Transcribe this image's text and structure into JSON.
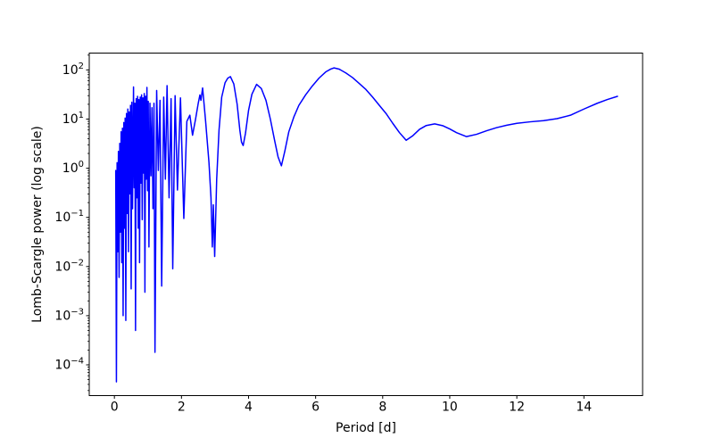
{
  "figure": {
    "background": "#ffffff",
    "axes_edge_color": "#000000",
    "tick_color": "#000000"
  },
  "chart_data": {
    "type": "line",
    "title": "",
    "xlabel": "Period [d]",
    "ylabel": "Lomb-Scargle power (log scale)",
    "x_scale": "linear",
    "y_scale": "log",
    "grid": false,
    "legend_position": "none",
    "xlim": [
      -0.75,
      15.75
    ],
    "ylim_log10": [
      -4.626,
      2.343
    ],
    "x_ticks": [
      0,
      2,
      4,
      6,
      8,
      10,
      12,
      14
    ],
    "y_tick_exponents": [
      2,
      1,
      0,
      -1,
      -2,
      -3,
      -4
    ],
    "y_minor_subs": [
      2,
      3,
      4,
      5,
      6,
      7,
      8,
      9
    ],
    "y_minor_decades": [
      -5,
      -4,
      -3,
      -2,
      -1,
      0,
      1,
      2
    ],
    "line_color": "#0000ff",
    "line_width": 1.5,
    "series": [
      {
        "name": "Lomb-Scargle power",
        "color": "#0000ff",
        "points": [
          [
            0.04,
            0.9
          ],
          [
            0.06,
            4.5e-05
          ],
          [
            0.08,
            1.3
          ],
          [
            0.1,
            0.02
          ],
          [
            0.12,
            2.2
          ],
          [
            0.14,
            0.006
          ],
          [
            0.16,
            3.2
          ],
          [
            0.18,
            0.05
          ],
          [
            0.2,
            5.5
          ],
          [
            0.22,
            0.012
          ],
          [
            0.24,
            6.5
          ],
          [
            0.26,
            0.001
          ],
          [
            0.28,
            8.5
          ],
          [
            0.3,
            0.06
          ],
          [
            0.32,
            10.5
          ],
          [
            0.34,
            0.0008
          ],
          [
            0.36,
            13
          ],
          [
            0.38,
            0.12
          ],
          [
            0.4,
            16
          ],
          [
            0.42,
            0.02
          ],
          [
            0.44,
            14
          ],
          [
            0.46,
            0.3
          ],
          [
            0.48,
            19
          ],
          [
            0.5,
            0.0035
          ],
          [
            0.52,
            22
          ],
          [
            0.54,
            0.15
          ],
          [
            0.57,
            45
          ],
          [
            0.59,
            0.4
          ],
          [
            0.61,
            21
          ],
          [
            0.63,
            0.0005
          ],
          [
            0.65,
            26
          ],
          [
            0.67,
            0.25
          ],
          [
            0.69,
            29
          ],
          [
            0.71,
            0.06
          ],
          [
            0.73,
            25
          ],
          [
            0.75,
            0.012
          ],
          [
            0.77,
            28
          ],
          [
            0.79,
            0.5
          ],
          [
            0.81,
            31
          ],
          [
            0.83,
            0.09
          ],
          [
            0.85,
            27
          ],
          [
            0.87,
            0.8
          ],
          [
            0.89,
            33
          ],
          [
            0.91,
            0.003
          ],
          [
            0.93,
            29
          ],
          [
            0.95,
            0.6
          ],
          [
            0.97,
            44
          ],
          [
            0.99,
            0.35
          ],
          [
            1.01,
            23
          ],
          [
            1.03,
            0.025
          ],
          [
            1.06,
            21
          ],
          [
            1.09,
            0.7
          ],
          [
            1.12,
            17
          ],
          [
            1.15,
            0.15
          ],
          [
            1.18,
            21
          ],
          [
            1.21,
            0.00018
          ],
          [
            1.26,
            38
          ],
          [
            1.31,
            0.9
          ],
          [
            1.36,
            24
          ],
          [
            1.41,
            0.004
          ],
          [
            1.47,
            28
          ],
          [
            1.52,
            0.6
          ],
          [
            1.57,
            48
          ],
          [
            1.63,
            0.25
          ],
          [
            1.69,
            26
          ],
          [
            1.74,
            0.009
          ],
          [
            1.81,
            30
          ],
          [
            1.88,
            0.36
          ],
          [
            1.97,
            27
          ],
          [
            2.07,
            0.095
          ],
          [
            2.16,
            9
          ],
          [
            2.25,
            12
          ],
          [
            2.33,
            4.7
          ],
          [
            2.42,
            10
          ],
          [
            2.5,
            21
          ],
          [
            2.55,
            31
          ],
          [
            2.58,
            24
          ],
          [
            2.63,
            43
          ],
          [
            2.72,
            9
          ],
          [
            2.82,
            1.3
          ],
          [
            2.88,
            0.25
          ],
          [
            2.92,
            0.025
          ],
          [
            2.95,
            0.18
          ],
          [
            2.99,
            0.016
          ],
          [
            3.05,
            0.6
          ],
          [
            3.12,
            6
          ],
          [
            3.2,
            28
          ],
          [
            3.3,
            55
          ],
          [
            3.38,
            68
          ],
          [
            3.46,
            73
          ],
          [
            3.56,
            52
          ],
          [
            3.66,
            20
          ],
          [
            3.74,
            6
          ],
          [
            3.79,
            3.4
          ],
          [
            3.84,
            2.9
          ],
          [
            3.91,
            5.2
          ],
          [
            4.0,
            15
          ],
          [
            4.1,
            32
          ],
          [
            4.24,
            51
          ],
          [
            4.38,
            42
          ],
          [
            4.52,
            24
          ],
          [
            4.65,
            10
          ],
          [
            4.78,
            3.6
          ],
          [
            4.88,
            1.7
          ],
          [
            4.98,
            1.12
          ],
          [
            5.08,
            2.2
          ],
          [
            5.2,
            5.5
          ],
          [
            5.35,
            11
          ],
          [
            5.5,
            19
          ],
          [
            5.7,
            31
          ],
          [
            5.9,
            47
          ],
          [
            6.1,
            68
          ],
          [
            6.3,
            91
          ],
          [
            6.45,
            104
          ],
          [
            6.55,
            110
          ],
          [
            6.7,
            104
          ],
          [
            6.9,
            87
          ],
          [
            7.1,
            70
          ],
          [
            7.3,
            53
          ],
          [
            7.5,
            40
          ],
          [
            7.7,
            28
          ],
          [
            7.9,
            19
          ],
          [
            8.1,
            13
          ],
          [
            8.3,
            8.2
          ],
          [
            8.5,
            5.3
          ],
          [
            8.7,
            3.7
          ],
          [
            8.9,
            4.6
          ],
          [
            9.1,
            6.2
          ],
          [
            9.3,
            7.4
          ],
          [
            9.55,
            8.0
          ],
          [
            9.8,
            7.3
          ],
          [
            10.0,
            6.3
          ],
          [
            10.2,
            5.3
          ],
          [
            10.5,
            4.4
          ],
          [
            10.8,
            4.9
          ],
          [
            11.1,
            5.8
          ],
          [
            11.4,
            6.7
          ],
          [
            11.7,
            7.5
          ],
          [
            12.0,
            8.2
          ],
          [
            12.4,
            8.8
          ],
          [
            12.8,
            9.3
          ],
          [
            13.2,
            10.2
          ],
          [
            13.6,
            12
          ],
          [
            14.0,
            16
          ],
          [
            14.4,
            21
          ],
          [
            14.7,
            25
          ],
          [
            15.0,
            29
          ]
        ]
      }
    ]
  }
}
